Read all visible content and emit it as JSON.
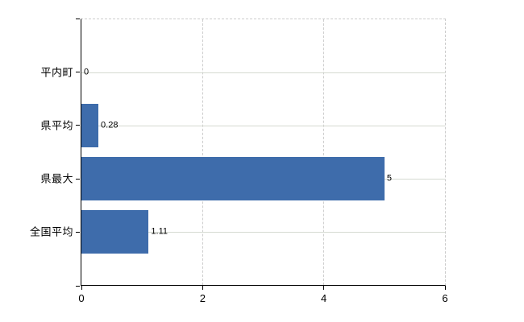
{
  "chart_data": {
    "type": "bar",
    "orientation": "horizontal",
    "title": "",
    "xlabel": "",
    "ylabel": "",
    "categories": [
      "平内町",
      "県平均",
      "県最大",
      "全国平均"
    ],
    "values": [
      0,
      0.28,
      5,
      1.11
    ],
    "data_labels": [
      "0",
      "0.28",
      "5",
      "1.11"
    ],
    "xlim": [
      0,
      6
    ],
    "x_ticks": [
      0,
      2,
      4,
      6
    ],
    "x_tick_labels": [
      "0",
      "2",
      "4",
      "6"
    ],
    "legend": "none",
    "grid": {
      "vertical": "dashed",
      "horizontal": "solid-at-category-centers",
      "plot_border_top": "dashed",
      "plot_border_right": "dashed"
    },
    "colors": {
      "bar": "#3e6cab",
      "gridline_solid": "#d5dad1",
      "gridline_dashed": "#cccccc",
      "axis": "#000000",
      "text": "#000000",
      "background": "#ffffff"
    }
  }
}
